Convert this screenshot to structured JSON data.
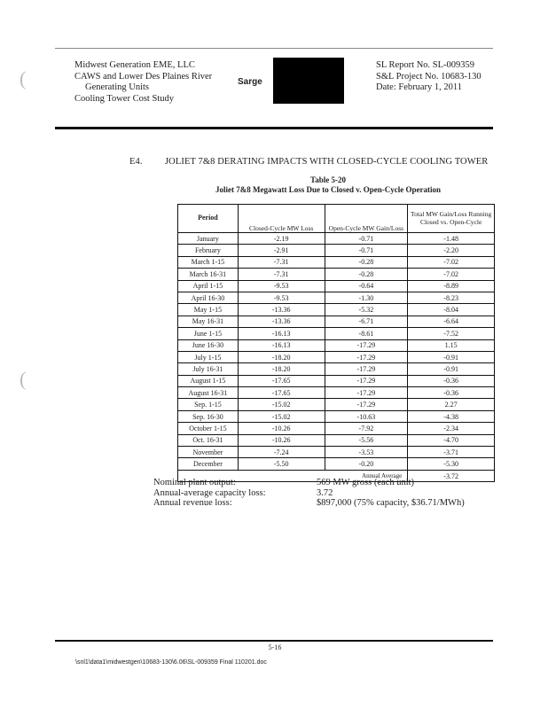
{
  "header": {
    "left": [
      "Midwest Generation EME, LLC",
      "CAWS and Lower Des Plaines River",
      "Generating Units",
      "Cooling Tower Cost Study"
    ],
    "logo_text": "Sarge",
    "right": [
      "SL Report No. SL-009359",
      "S&L Project No. 10683-130",
      "Date:  February 1, 2011"
    ]
  },
  "section": {
    "number": "E4.",
    "title": "JOLIET 7&8 DERATING IMPACTS WITH CLOSED-CYCLE COOLING TOWER"
  },
  "table": {
    "caption": "Table 5-20",
    "title": "Joliet 7&8 Megawatt Loss Due to Closed v. Open-Cycle Operation",
    "columns": [
      "Period",
      "Closed-Cycle MW Loss",
      "Open-Cycle MW Gain/Loss",
      "Total MW Gain/Loss Running Closed vs. Open-Cycle"
    ],
    "rows": [
      [
        "January",
        "-2.19",
        "-0.71",
        "-1.48"
      ],
      [
        "February",
        "-2.91",
        "-0.71",
        "-2.20"
      ],
      [
        "March 1-15",
        "-7.31",
        "-0.28",
        "-7.02"
      ],
      [
        "March 16-31",
        "-7.31",
        "-0.28",
        "-7.02"
      ],
      [
        "April 1-15",
        "-9.53",
        "-0.64",
        "-8.89"
      ],
      [
        "April 16-30",
        "-9.53",
        "-1.30",
        "-8.23"
      ],
      [
        "May 1-15",
        "-13.36",
        "-5.32",
        "-8.04"
      ],
      [
        "May 16-31",
        "-13.36",
        "-6.71",
        "-6.64"
      ],
      [
        "June 1-15",
        "-16.13",
        "-8.61",
        "-7.52"
      ],
      [
        "June 16-30",
        "-16.13",
        "-17.29",
        "1.15"
      ],
      [
        "July 1-15",
        "-18.20",
        "-17.29",
        "-0.91"
      ],
      [
        "July 16-31",
        "-18.20",
        "-17.29",
        "-0.91"
      ],
      [
        "August 1-15",
        "-17.65",
        "-17.29",
        "-0.36"
      ],
      [
        "August 16-31",
        "-17.65",
        "-17.29",
        "-0.36"
      ],
      [
        "Sep. 1-15",
        "-15.02",
        "-17.29",
        "2.27"
      ],
      [
        "Sep. 16-30",
        "-15.02",
        "-10.63",
        "-4.38"
      ],
      [
        "October 1-15",
        "-10.26",
        "-7.92",
        "-2.34"
      ],
      [
        "Oct. 16-31",
        "-10.26",
        "-5.56",
        "-4.70"
      ],
      [
        "November",
        "-7.24",
        "-3.53",
        "-3.71"
      ],
      [
        "December",
        "-5.50",
        "-0.20",
        "-5.30"
      ]
    ],
    "annual_average_label": "Annual Average",
    "annual_average_value": "-3.72"
  },
  "summary": [
    {
      "label": "Nominal plant output:",
      "value": "569 MW gross (each unit)"
    },
    {
      "label": "Annual-average capacity loss:",
      "value": "3.72"
    },
    {
      "label": "Annual revenue loss:",
      "value": "$897,000 (75% capacity, $36.71/MWh)"
    }
  ],
  "footer": {
    "page_number": "5-16",
    "file_path": "\\snl1\\data1\\midwestgen\\10683-130\\6.06\\SL-009359 Final 110201.doc"
  }
}
